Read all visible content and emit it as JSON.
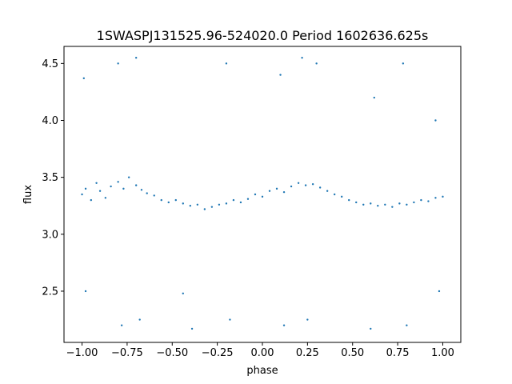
{
  "chart_data": {
    "type": "scatter",
    "title": "1SWASPJ131525.96-524020.0 Period 1602636.625s",
    "xlabel": "phase",
    "ylabel": "flux",
    "xlim": [
      -1.1,
      1.1
    ],
    "ylim": [
      2.05,
      4.65
    ],
    "grid": false,
    "legend": "none",
    "marker_color": "#1f77b4",
    "x_ticks": [
      {
        "value": -1.0,
        "label": "−1.00"
      },
      {
        "value": -0.75,
        "label": "−0.75"
      },
      {
        "value": -0.5,
        "label": "−0.50"
      },
      {
        "value": -0.25,
        "label": "−0.25"
      },
      {
        "value": 0.0,
        "label": "0.00"
      },
      {
        "value": 0.25,
        "label": "0.25"
      },
      {
        "value": 0.5,
        "label": "0.50"
      },
      {
        "value": 0.75,
        "label": "0.75"
      },
      {
        "value": 1.0,
        "label": "1.00"
      }
    ],
    "y_ticks": [
      {
        "value": 2.5,
        "label": "2.5"
      },
      {
        "value": 3.0,
        "label": "3.0"
      },
      {
        "value": 3.5,
        "label": "3.5"
      },
      {
        "value": 4.0,
        "label": "4.0"
      },
      {
        "value": 4.5,
        "label": "4.5"
      }
    ],
    "series": [
      {
        "points": [
          [
            -1.0,
            3.35
          ],
          [
            -0.98,
            3.4
          ],
          [
            -0.95,
            3.3
          ],
          [
            -0.92,
            3.45
          ],
          [
            -0.9,
            3.38
          ],
          [
            -0.87,
            3.32
          ],
          [
            -0.84,
            3.42
          ],
          [
            -0.8,
            3.46
          ],
          [
            -0.77,
            3.4
          ],
          [
            -0.74,
            3.5
          ],
          [
            -0.7,
            3.43
          ],
          [
            -0.67,
            3.39
          ],
          [
            -0.64,
            3.36
          ],
          [
            -0.6,
            3.34
          ],
          [
            -0.56,
            3.3
          ],
          [
            -0.52,
            3.28
          ],
          [
            -0.48,
            3.3
          ],
          [
            -0.44,
            3.27
          ],
          [
            -0.4,
            3.25
          ],
          [
            -0.36,
            3.26
          ],
          [
            -0.32,
            3.22
          ],
          [
            -0.28,
            3.24
          ],
          [
            -0.24,
            3.26
          ],
          [
            -0.2,
            3.27
          ],
          [
            -0.16,
            3.3
          ],
          [
            -0.12,
            3.28
          ],
          [
            -0.08,
            3.31
          ],
          [
            -0.04,
            3.35
          ],
          [
            0.0,
            3.33
          ],
          [
            0.04,
            3.38
          ],
          [
            0.08,
            3.4
          ],
          [
            0.12,
            3.37
          ],
          [
            0.16,
            3.42
          ],
          [
            0.2,
            3.45
          ],
          [
            0.24,
            3.43
          ],
          [
            0.28,
            3.44
          ],
          [
            0.32,
            3.41
          ],
          [
            0.36,
            3.38
          ],
          [
            0.4,
            3.35
          ],
          [
            0.44,
            3.33
          ],
          [
            0.48,
            3.3
          ],
          [
            0.52,
            3.28
          ],
          [
            0.56,
            3.26
          ],
          [
            0.6,
            3.27
          ],
          [
            0.64,
            3.25
          ],
          [
            0.68,
            3.26
          ],
          [
            0.72,
            3.24
          ],
          [
            0.76,
            3.27
          ],
          [
            0.8,
            3.26
          ],
          [
            0.84,
            3.28
          ],
          [
            0.88,
            3.3
          ],
          [
            0.92,
            3.29
          ],
          [
            0.96,
            3.32
          ],
          [
            1.0,
            3.33
          ],
          [
            -0.99,
            4.37
          ],
          [
            -0.98,
            2.5
          ],
          [
            -0.8,
            4.5
          ],
          [
            -0.78,
            2.2
          ],
          [
            -0.7,
            4.55
          ],
          [
            -0.68,
            2.25
          ],
          [
            -0.44,
            2.48
          ],
          [
            -0.39,
            2.17
          ],
          [
            -0.2,
            4.5
          ],
          [
            -0.18,
            2.25
          ],
          [
            0.1,
            4.4
          ],
          [
            0.12,
            2.2
          ],
          [
            0.22,
            4.55
          ],
          [
            0.25,
            2.25
          ],
          [
            0.3,
            4.5
          ],
          [
            0.6,
            2.17
          ],
          [
            0.62,
            4.2
          ],
          [
            0.78,
            4.5
          ],
          [
            0.8,
            2.2
          ],
          [
            0.96,
            4.0
          ],
          [
            0.98,
            2.5
          ]
        ]
      }
    ]
  }
}
